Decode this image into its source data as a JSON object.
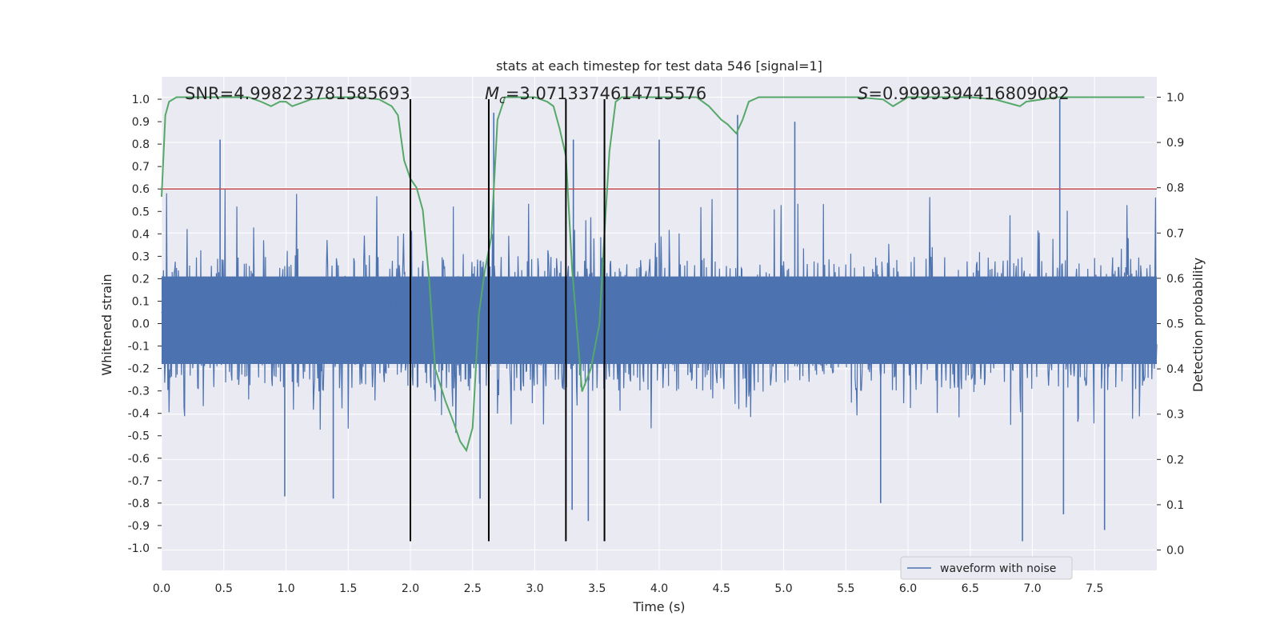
{
  "chart_data": {
    "type": "line",
    "title": "stats at each timestep for test data 546 [signal=1]",
    "xlabel": "Time (s)",
    "ylabel": "Whitened strain",
    "ylabel_right": "Detection probability",
    "xlim": [
      0.0,
      8.0
    ],
    "ylim": [
      -1.1,
      1.1
    ],
    "ylim_right": [
      -0.045,
      1.045
    ],
    "x_ticks": [
      "0.0",
      "0.5",
      "1.0",
      "1.5",
      "2.0",
      "2.5",
      "3.0",
      "3.5",
      "4.0",
      "4.5",
      "5.0",
      "5.5",
      "6.0",
      "6.5",
      "7.0",
      "7.5"
    ],
    "y_ticks": [
      "1.0",
      "0.9",
      "0.8",
      "0.7",
      "0.6",
      "0.5",
      "0.4",
      "0.3",
      "0.2",
      "0.1",
      "0.0",
      "-0.1",
      "-0.2",
      "-0.3",
      "-0.4",
      "-0.5",
      "-0.6",
      "-0.7",
      "-0.8",
      "-0.9",
      "-1.0"
    ],
    "y_ticks_right": [
      "1.0",
      "0.9",
      "0.8",
      "0.7",
      "0.6",
      "0.5",
      "0.4",
      "0.3",
      "0.2",
      "0.1",
      "0.0"
    ],
    "grid": true,
    "legend_position": "bottom-right",
    "annotations": {
      "snr": "SNR=4.998223781585693",
      "mc_symbol": "M",
      "mc_sub": "c",
      "mc_value": "=3.0713374614715576",
      "s_symbol": "S",
      "s_value": "=0.9999394416809082"
    },
    "threshold": {
      "y": 0.6,
      "color": "#c44e52"
    },
    "vlines": {
      "x": [
        2.0,
        2.63,
        3.25,
        3.56
      ],
      "ymin": -0.97,
      "ymax": 1.0,
      "color": "#000000"
    },
    "series": [
      {
        "name": "waveform with noise",
        "axis": "left",
        "color": "#4c72b0",
        "kind": "noisy_waveform",
        "envelope_note": "dense noise, typical amplitude about ±0.3 with peaks up to 1.0 and down to -0.97",
        "peaks": [
          [
            0.47,
            0.82
          ],
          [
            7.22,
            1.0
          ],
          [
            2.67,
            0.94
          ],
          [
            4.63,
            0.93
          ],
          [
            5.09,
            0.9
          ],
          [
            3.31,
            0.82
          ],
          [
            4.0,
            0.82
          ],
          [
            6.92,
            -0.97
          ],
          [
            3.43,
            -0.88
          ],
          [
            7.58,
            -0.92
          ],
          [
            3.3,
            -0.83
          ],
          [
            7.25,
            -0.85
          ],
          [
            2.56,
            -0.78
          ],
          [
            5.78,
            -0.8
          ],
          [
            0.99,
            -0.77
          ],
          [
            1.38,
            -0.78
          ]
        ]
      },
      {
        "name": "",
        "axis": "right",
        "color": "#55a868",
        "kind": "line",
        "x": [
          0.0,
          0.03,
          0.06,
          0.12,
          0.2,
          0.7,
          0.8,
          0.88,
          0.95,
          1.0,
          1.05,
          1.1,
          1.2,
          1.4,
          1.6,
          1.75,
          1.85,
          1.9,
          1.95,
          2.0,
          2.05,
          2.1,
          2.15,
          2.2,
          2.28,
          2.35,
          2.4,
          2.45,
          2.5,
          2.55,
          2.6,
          2.65,
          2.7,
          2.76,
          2.8,
          2.9,
          3.0,
          3.1,
          3.15,
          3.2,
          3.25,
          3.3,
          3.38,
          3.45,
          3.52,
          3.56,
          3.6,
          3.65,
          3.7,
          4.0,
          4.3,
          4.4,
          4.5,
          4.55,
          4.62,
          4.67,
          4.72,
          4.8,
          5.0,
          5.6,
          5.8,
          5.88,
          6.0,
          6.2,
          6.5,
          6.7,
          6.9,
          6.95,
          7.2,
          7.9
        ],
        "y": [
          0.78,
          0.96,
          0.99,
          1.0,
          1.0,
          1.0,
          0.99,
          0.98,
          0.99,
          0.99,
          0.98,
          0.985,
          0.995,
          1.0,
          1.0,
          0.995,
          0.98,
          0.96,
          0.86,
          0.82,
          0.8,
          0.75,
          0.6,
          0.4,
          0.33,
          0.28,
          0.24,
          0.22,
          0.27,
          0.52,
          0.62,
          0.69,
          0.95,
          1.0,
          1.0,
          1.0,
          1.0,
          0.99,
          0.98,
          0.93,
          0.87,
          0.62,
          0.35,
          0.4,
          0.5,
          0.7,
          0.88,
          0.99,
          1.0,
          1.0,
          1.0,
          0.98,
          0.95,
          0.94,
          0.92,
          0.95,
          0.99,
          1.0,
          1.0,
          1.0,
          0.995,
          0.98,
          1.0,
          1.0,
          1.0,
          0.995,
          0.98,
          0.99,
          1.0,
          1.0
        ]
      }
    ]
  }
}
